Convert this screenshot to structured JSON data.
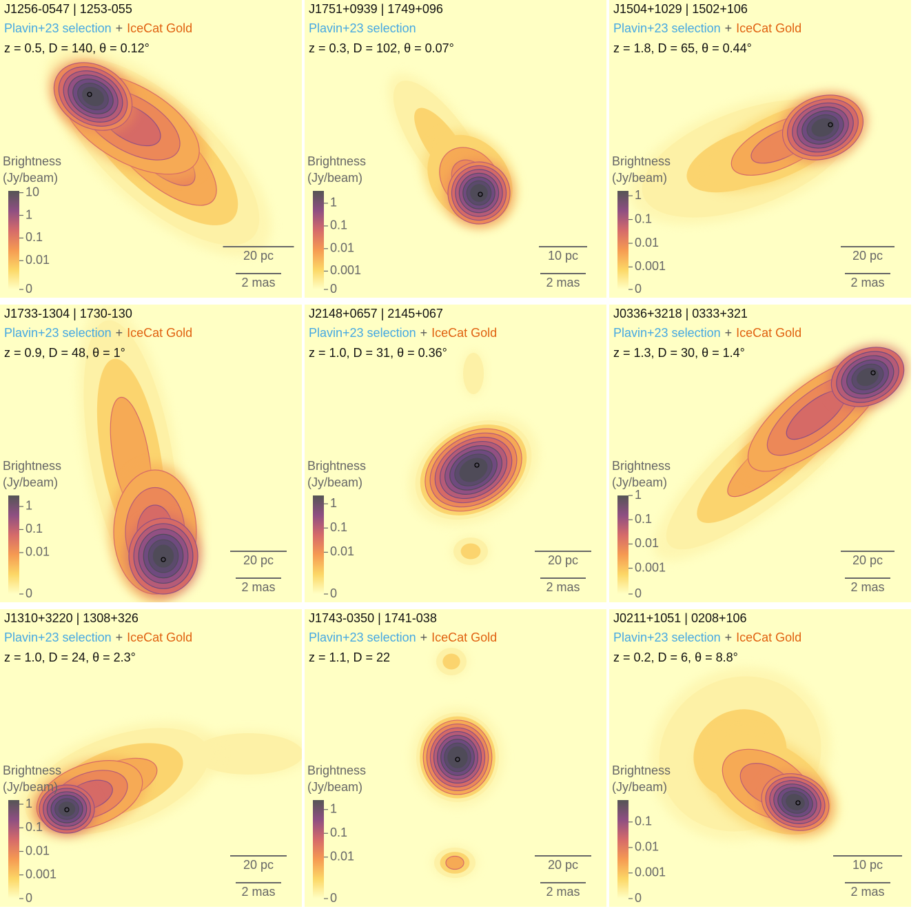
{
  "panels": [
    {
      "title": "J1256-0547 | 1253-055",
      "selection": "Plavin+23 selection",
      "separator": "+",
      "catalog": "IceCat Gold",
      "params": "z = 0.5,  D = 140,  θ = 0.12°",
      "colorbar": {
        "label": [
          "Brightness",
          "(Jy/beam)"
        ],
        "clim": [
          0,
          12
        ],
        "linthresh": 0.00054,
        "ticks": [
          10,
          1,
          0.1,
          0.01,
          0
        ]
      },
      "scale_linear": "20 pc",
      "scale_angular": "2 mas"
    },
    {
      "title": "J1751+0939 | 1749+096",
      "selection": "Plavin+23 selection",
      "params": "z = 0.3,  D = 102,  θ = 0.07°",
      "colorbar": {
        "label": [
          "Brightness",
          "(Jy/beam)"
        ],
        "clim": [
          0,
          3.5
        ],
        "linthresh": 0.00016,
        "ticks": [
          1,
          0.1,
          0.01,
          0.001,
          0
        ]
      },
      "scale_linear": "10 pc",
      "scale_angular": "2 mas"
    },
    {
      "title": "J1504+1029 | 1502+106",
      "selection": "Plavin+23 selection",
      "separator": "+",
      "catalog": "IceCat Gold",
      "params": "z = 1.8,  D = 65,  θ = 0.44°",
      "colorbar": {
        "label": [
          "Brightness",
          "(Jy/beam)"
        ],
        "clim": [
          0,
          1.6
        ],
        "linthresh": 0.000115,
        "ticks": [
          1,
          0.1,
          0.01,
          0.001,
          0
        ]
      },
      "scale_linear": "20 pc",
      "scale_angular": "2 mas"
    },
    {
      "title": "J1733-1304 | 1730-130",
      "selection": "Plavin+23 selection",
      "separator": "+",
      "catalog": "IceCat Gold",
      "params": "z = 0.9,  D = 48,  θ = 1°",
      "colorbar": {
        "label": [
          "Brightness",
          "(Jy/beam)"
        ],
        "clim": [
          0,
          3
        ],
        "linthresh": 0.00016,
        "ticks": [
          1,
          0.1,
          0.01,
          0
        ]
      },
      "scale_linear": "20 pc",
      "scale_angular": "2 mas"
    },
    {
      "title": "J2148+0657 | 2145+067",
      "selection": "Plavin+23 selection",
      "separator": "+",
      "catalog": "IceCat Gold",
      "params": "z = 1.0,  D = 31,  θ = 0.36°",
      "colorbar": {
        "label": [
          "Brightness",
          "(Jy/beam)"
        ],
        "clim": [
          0,
          2.2
        ],
        "linthresh": 0.00019,
        "ticks": [
          1,
          0.1,
          0.01,
          0
        ]
      },
      "scale_linear": "20 pc",
      "scale_angular": "2 mas"
    },
    {
      "title": "J0336+3218 | 0333+321",
      "selection": "Plavin+23 selection",
      "separator": "+",
      "catalog": "IceCat Gold",
      "params": "z = 1.3,  D = 30,  θ = 1.4°",
      "colorbar": {
        "label": [
          "Brightness",
          "(Jy/beam)"
        ],
        "clim": [
          0,
          1
        ],
        "linthresh": 8.7e-05,
        "ticks": [
          1,
          0.1,
          0.01,
          0.001,
          0
        ]
      },
      "scale_linear": "20 pc",
      "scale_angular": "2 mas"
    },
    {
      "title": "J1310+3220 | 1308+326",
      "selection": "Plavin+23 selection",
      "separator": "+",
      "catalog": "IceCat Gold",
      "params": "z = 1.0,  D = 24,  θ = 2.3°",
      "colorbar": {
        "label": [
          "Brightness",
          "(Jy/beam)"
        ],
        "clim": [
          0,
          1.5
        ],
        "linthresh": 0.0001,
        "ticks": [
          1,
          0.1,
          0.01,
          0.001,
          0
        ]
      },
      "scale_linear": "20 pc",
      "scale_angular": "2 mas"
    },
    {
      "title": "J1743-0350 | 1741-038",
      "selection": "Plavin+23 selection",
      "separator": "+",
      "catalog": "IceCat Gold",
      "params": "z = 1.1,  D = 22",
      "colorbar": {
        "label": [
          "Brightness",
          "(Jy/beam)"
        ],
        "clim": [
          0,
          2.5
        ],
        "linthresh": 0.00018,
        "ticks": [
          1,
          0.1,
          0.01,
          0
        ]
      },
      "scale_linear": "20 pc",
      "scale_angular": "2 mas"
    },
    {
      "title": "J0211+1051 | 0208+106",
      "selection": "Plavin+23 selection",
      "separator": "+",
      "catalog": "IceCat Gold",
      "params": "z = 0.2,  D = 6,  θ = 8.8°",
      "colorbar": {
        "label": [
          "Brightness",
          "(Jy/beam)"
        ],
        "clim": [
          0,
          0.72
        ],
        "linthresh": 0.0001,
        "ticks": [
          0.1,
          0.01,
          0.001,
          0
        ]
      },
      "scale_linear": "10 pc",
      "scale_angular": "2 mas"
    }
  ]
}
